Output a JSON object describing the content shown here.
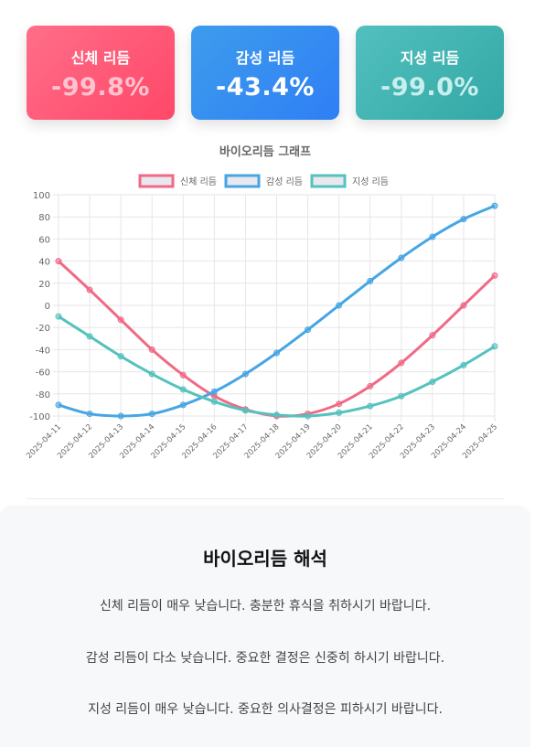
{
  "cards": [
    {
      "label": "신체 리듬",
      "value": "-99.8%"
    },
    {
      "label": "감성 리듬",
      "value": "-43.4%"
    },
    {
      "label": "지성 리듬",
      "value": "-99.0%"
    }
  ],
  "chart_data": {
    "type": "line",
    "title": "바이오리듬 그래프",
    "xlabel": "",
    "ylabel": "",
    "ylim": [
      -100,
      100
    ],
    "yticks": [
      "100",
      "80",
      "60",
      "40",
      "20",
      "0",
      "-20",
      "-40",
      "-60",
      "-80",
      "-100"
    ],
    "grid": true,
    "legend_position": "top",
    "categories": [
      "2025-04-11",
      "2025-04-12",
      "2025-04-13",
      "2025-04-14",
      "2025-04-15",
      "2025-04-16",
      "2025-04-17",
      "2025-04-18",
      "2025-04-19",
      "2025-04-20",
      "2025-04-21",
      "2025-04-22",
      "2025-04-23",
      "2025-04-24",
      "2025-04-25"
    ],
    "series": [
      {
        "name": "신체 리듬",
        "color": "#f06a86",
        "values": [
          40,
          14,
          -13,
          -40,
          -63,
          -82,
          -94,
          -100,
          -98,
          -89,
          -73,
          -52,
          -27,
          0,
          27
        ]
      },
      {
        "name": "감성 리듬",
        "color": "#46a6e3",
        "values": [
          -90,
          -98,
          -100,
          -98,
          -90,
          -78,
          -62,
          -43,
          -22,
          0,
          22,
          43,
          62,
          78,
          90
        ]
      },
      {
        "name": "지성 리듬",
        "color": "#55c2be",
        "values": [
          -10,
          -28,
          -46,
          -62,
          -76,
          -87,
          -95,
          -99,
          -100,
          -97,
          -91,
          -82,
          -69,
          -54,
          -37
        ]
      }
    ]
  },
  "interpretation": {
    "title": "바이오리듬 해석",
    "lines": [
      "신체 리듬이 매우 낮습니다. 충분한 휴식을 취하시기 바랍니다.",
      "감성 리듬이 다소 낮습니다. 중요한 결정은 신중히 하시기 바랍니다.",
      "지성 리듬이 매우 낮습니다. 중요한 의사결정은 피하시기 바랍니다."
    ]
  }
}
